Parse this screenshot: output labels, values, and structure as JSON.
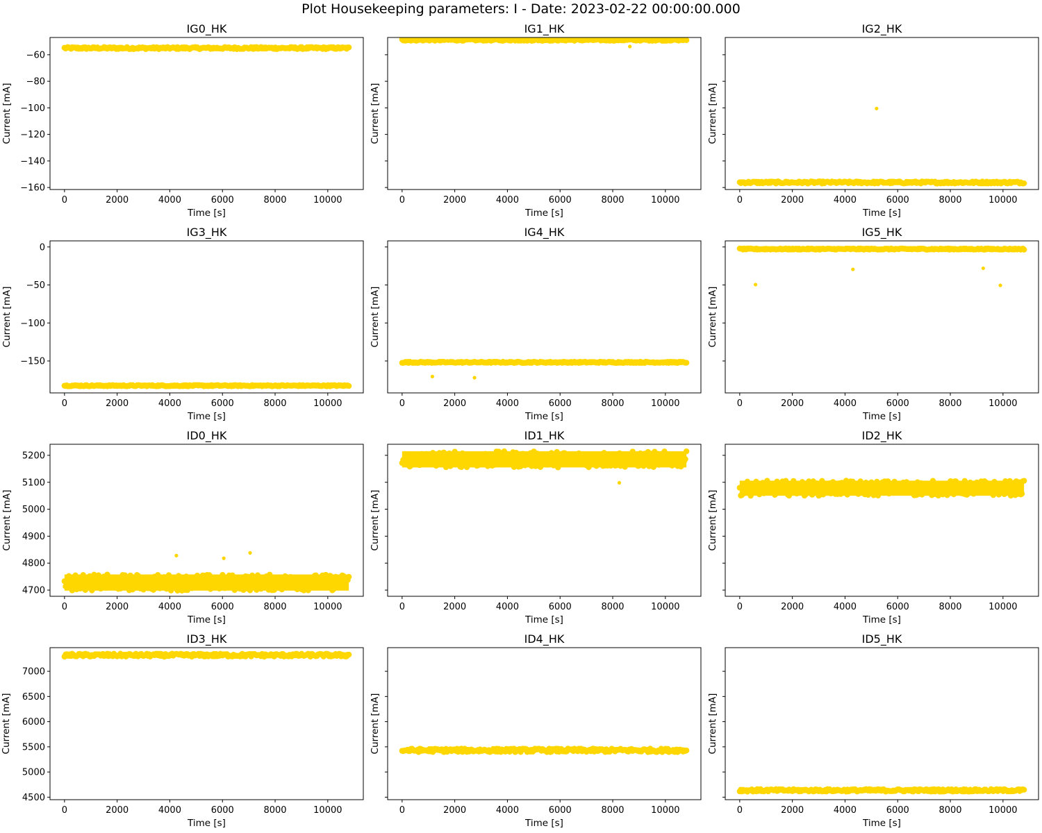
{
  "title": "Plot Housekeeping parameters: I - Date: 2023-02-22 00:00:00.000",
  "colors": {
    "marker": "#FFD700",
    "axes": "#000000"
  },
  "chart_data": [
    {
      "type": "scatter",
      "title": "IG0_HK",
      "xlabel": "Time [s]",
      "ylabel": "Current [mA]",
      "xlim": [
        -550,
        11350
      ],
      "ylim": [
        -161.5,
        -47
      ],
      "xticks": [
        0,
        2000,
        4000,
        6000,
        8000,
        10000
      ],
      "yticks": [
        -60,
        -80,
        -100,
        -120,
        -140,
        -160
      ],
      "show_yticklabels": true,
      "series": [
        {
          "band": {
            "x": [
              0,
              10800
            ],
            "center": -55,
            "spread": 0.8
          },
          "points": []
        }
      ]
    },
    {
      "type": "scatter",
      "title": "IG1_HK",
      "xlabel": "Time [s]",
      "ylabel": "Current [mA]",
      "xlim": [
        -550,
        11350
      ],
      "ylim": [
        -161.5,
        -47
      ],
      "xticks": [
        0,
        2000,
        4000,
        6000,
        8000,
        10000
      ],
      "yticks": [
        -60,
        -80,
        -100,
        -120,
        -140,
        -160
      ],
      "show_yticklabels": false,
      "series": [
        {
          "band": {
            "x": [
              0,
              10800
            ],
            "center": -48.8,
            "spread": 0.7
          },
          "points": [
            {
              "x": 8650,
              "y": -53.8
            }
          ]
        }
      ]
    },
    {
      "type": "scatter",
      "title": "IG2_HK",
      "xlabel": "Time [s]",
      "ylabel": "Current [mA]",
      "xlim": [
        -550,
        11350
      ],
      "ylim": [
        -161.5,
        -47
      ],
      "xticks": [
        0,
        2000,
        4000,
        6000,
        8000,
        10000
      ],
      "yticks": [
        -60,
        -80,
        -100,
        -120,
        -140,
        -160
      ],
      "show_yticklabels": false,
      "series": [
        {
          "band": {
            "x": [
              0,
              10800
            ],
            "center": -156.2,
            "spread": 0.8
          },
          "points": [
            {
              "x": 5200,
              "y": -100.5
            }
          ]
        }
      ]
    },
    {
      "type": "scatter",
      "title": "IG3_HK",
      "xlabel": "Time [s]",
      "ylabel": "Current [mA]",
      "xlim": [
        -550,
        11350
      ],
      "ylim": [
        -192,
        8
      ],
      "xticks": [
        0,
        2000,
        4000,
        6000,
        8000,
        10000
      ],
      "yticks": [
        0,
        -50,
        -100,
        -150
      ],
      "show_yticklabels": true,
      "series": [
        {
          "band": {
            "x": [
              0,
              10800
            ],
            "center": -182.5,
            "spread": 0.8
          },
          "points": []
        }
      ]
    },
    {
      "type": "scatter",
      "title": "IG4_HK",
      "xlabel": "Time [s]",
      "ylabel": "Current [mA]",
      "xlim": [
        -550,
        11350
      ],
      "ylim": [
        -192,
        8
      ],
      "xticks": [
        0,
        2000,
        4000,
        6000,
        8000,
        10000
      ],
      "yticks": [
        0,
        -50,
        -100,
        -150
      ],
      "show_yticklabels": false,
      "series": [
        {
          "band": {
            "x": [
              0,
              10800
            ],
            "center": -151.8,
            "spread": 0.8
          },
          "points": [
            {
              "x": 1150,
              "y": -170.5
            },
            {
              "x": 2750,
              "y": -172
            }
          ]
        }
      ]
    },
    {
      "type": "scatter",
      "title": "IG5_HK",
      "xlabel": "Time [s]",
      "ylabel": "Current [mA]",
      "xlim": [
        -550,
        11350
      ],
      "ylim": [
        -192,
        8
      ],
      "xticks": [
        0,
        2000,
        4000,
        6000,
        8000,
        10000
      ],
      "yticks": [
        0,
        -50,
        -100,
        -150
      ],
      "show_yticklabels": false,
      "series": [
        {
          "band": {
            "x": [
              0,
              10800
            ],
            "center": -2.8,
            "spread": 0.8
          },
          "points": [
            {
              "x": 600,
              "y": -49.5
            },
            {
              "x": 4300,
              "y": -29.5
            },
            {
              "x": 9250,
              "y": -28
            },
            {
              "x": 9900,
              "y": -50.5
            }
          ]
        }
      ]
    },
    {
      "type": "scatter",
      "title": "ID0_HK",
      "xlabel": "Time [s]",
      "ylabel": "Current [mA]",
      "xlim": [
        -550,
        11350
      ],
      "ylim": [
        4677,
        5241
      ],
      "xticks": [
        0,
        2000,
        4000,
        6000,
        8000,
        10000
      ],
      "yticks": [
        5200,
        5100,
        5000,
        4900,
        4800,
        4700
      ],
      "show_yticklabels": true,
      "series": [
        {
          "band": {
            "x": [
              0,
              10800
            ],
            "center": 4728,
            "spread": 30
          },
          "points": [
            {
              "x": 4250,
              "y": 4828
            },
            {
              "x": 6050,
              "y": 4818
            },
            {
              "x": 7050,
              "y": 4838
            }
          ]
        }
      ]
    },
    {
      "type": "scatter",
      "title": "ID1_HK",
      "xlabel": "Time [s]",
      "ylabel": "Current [mA]",
      "xlim": [
        -550,
        11350
      ],
      "ylim": [
        4677,
        5241
      ],
      "xticks": [
        0,
        2000,
        4000,
        6000,
        8000,
        10000
      ],
      "yticks": [
        5200,
        5100,
        5000,
        4900,
        4800,
        4700
      ],
      "show_yticklabels": false,
      "series": [
        {
          "band": {
            "x": [
              0,
              10800
            ],
            "center": 5185,
            "spread": 30
          },
          "points": [
            {
              "x": 8250,
              "y": 5098
            }
          ]
        }
      ]
    },
    {
      "type": "scatter",
      "title": "ID2_HK",
      "xlabel": "Time [s]",
      "ylabel": "Current [mA]",
      "xlim": [
        -550,
        11350
      ],
      "ylim": [
        4677,
        5241
      ],
      "xticks": [
        0,
        2000,
        4000,
        6000,
        8000,
        10000
      ],
      "yticks": [
        5200,
        5100,
        5000,
        4900,
        4800,
        4700
      ],
      "show_yticklabels": false,
      "series": [
        {
          "band": {
            "x": [
              0,
              10800
            ],
            "center": 5078,
            "spread": 28
          },
          "points": []
        }
      ]
    },
    {
      "type": "scatter",
      "title": "ID3_HK",
      "xlabel": "Time [s]",
      "ylabel": "Current [mA]",
      "xlim": [
        -550,
        11350
      ],
      "ylim": [
        4450,
        7470
      ],
      "xticks": [
        0,
        2000,
        4000,
        6000,
        8000,
        10000
      ],
      "yticks": [
        7000,
        6500,
        6000,
        5500,
        5000,
        4500
      ],
      "show_yticklabels": true,
      "series": [
        {
          "band": {
            "x": [
              0,
              10800
            ],
            "center": 7320,
            "spread": 30
          },
          "points": []
        }
      ]
    },
    {
      "type": "scatter",
      "title": "ID4_HK",
      "xlabel": "Time [s]",
      "ylabel": "Current [mA]",
      "xlim": [
        -550,
        11350
      ],
      "ylim": [
        4450,
        7470
      ],
      "xticks": [
        0,
        2000,
        4000,
        6000,
        8000,
        10000
      ],
      "yticks": [
        7000,
        6500,
        6000,
        5500,
        5000,
        4500
      ],
      "show_yticklabels": false,
      "series": [
        {
          "band": {
            "x": [
              0,
              10800
            ],
            "center": 5430,
            "spread": 35
          },
          "points": []
        }
      ]
    },
    {
      "type": "scatter",
      "title": "ID5_HK",
      "xlabel": "Time [s]",
      "ylabel": "Current [mA]",
      "xlim": [
        -550,
        11350
      ],
      "ylim": [
        4450,
        7470
      ],
      "xticks": [
        0,
        2000,
        4000,
        6000,
        8000,
        10000
      ],
      "yticks": [
        7000,
        6500,
        6000,
        5500,
        5000,
        4500
      ],
      "show_yticklabels": false,
      "series": [
        {
          "band": {
            "x": [
              0,
              10800
            ],
            "center": 4635,
            "spread": 25
          },
          "points": []
        }
      ]
    }
  ]
}
